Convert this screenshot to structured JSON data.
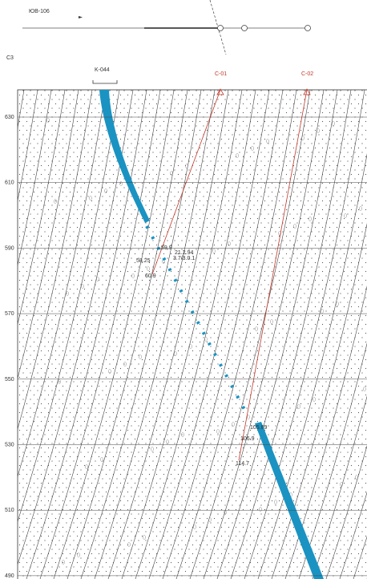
{
  "header": {
    "profile": "ЮВ-106",
    "section": "C3"
  },
  "adit": {
    "label": "K-044"
  },
  "holes": [
    {
      "label": "C-01"
    },
    {
      "label": "C-02"
    }
  ],
  "elevations": [
    "630",
    "610",
    "590",
    "570",
    "550",
    "530",
    "510",
    "490"
  ],
  "annotations": [
    "59.9",
    "21.2.94",
    "3.7/3.0.1",
    "58.25",
    "60.9",
    "105.89",
    "106.9",
    "114.7"
  ]
}
